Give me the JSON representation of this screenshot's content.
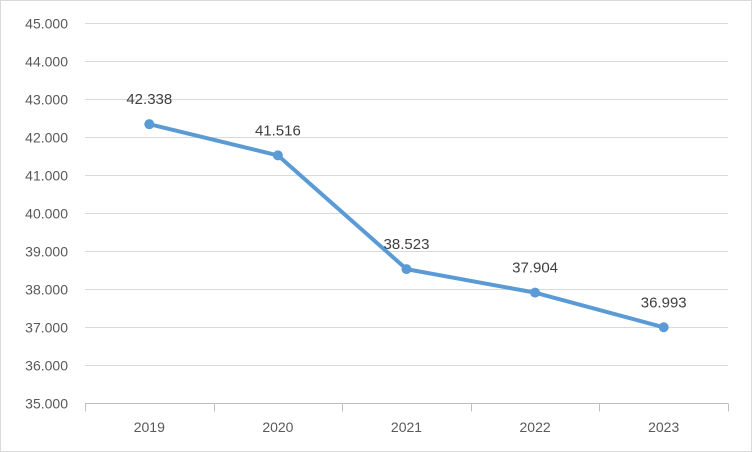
{
  "chart_data": {
    "type": "line",
    "title": "",
    "xlabel": "",
    "ylabel": "",
    "categories": [
      "2019",
      "2020",
      "2021",
      "2022",
      "2023"
    ],
    "series": [
      {
        "values": [
          42338,
          41516,
          38523,
          37904,
          36993
        ],
        "labels": [
          "42.338",
          "41.516",
          "38.523",
          "37.904",
          "36.993"
        ]
      }
    ],
    "ylim": [
      35000,
      45000
    ],
    "yticks": [
      35000,
      36000,
      37000,
      38000,
      39000,
      40000,
      41000,
      42000,
      43000,
      44000,
      45000
    ],
    "ytick_labels": [
      "35.000",
      "36.000",
      "37.000",
      "38.000",
      "39.000",
      "40.000",
      "41.000",
      "42.000",
      "43.000",
      "44.000",
      "45.000"
    ],
    "grid": true,
    "legend": "none",
    "colors": {
      "line": "#5b9bd5",
      "grid": "#d9d9d9",
      "axis": "#bfbfbf",
      "tick_text": "#595959",
      "label_text": "#404040"
    }
  }
}
